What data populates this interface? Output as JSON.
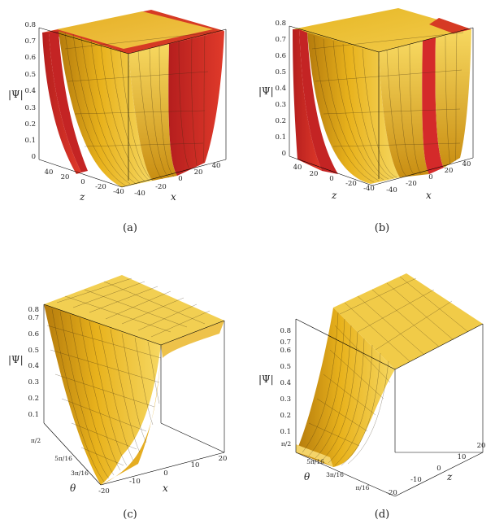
{
  "figure": {
    "panels": [
      {
        "id": "a",
        "caption": "(a)",
        "z_label": "|Ψ|",
        "z_ticks": [
          "0",
          "0.1",
          "0.2",
          "0.3",
          "0.4",
          "0.5",
          "0.6",
          "0.7",
          "0.8"
        ],
        "depth_label": "z",
        "depth_ticks": [
          "40",
          "20",
          "0",
          "-20",
          "-40"
        ],
        "right_label": "x",
        "right_ticks": [
          "-40",
          "-20",
          "0",
          "20",
          "40"
        ]
      },
      {
        "id": "b",
        "caption": "(b)",
        "z_label": "|Ψ|",
        "z_ticks": [
          "0",
          "0.1",
          "0.2",
          "0.3",
          "0.4",
          "0.5",
          "0.6",
          "0.7",
          "0.8"
        ],
        "depth_label": "z",
        "depth_ticks": [
          "40",
          "20",
          "0",
          "-20",
          "-40"
        ],
        "right_label": "x",
        "right_ticks": [
          "-40",
          "-20",
          "0",
          "20",
          "40"
        ]
      },
      {
        "id": "c",
        "caption": "(c)",
        "z_label": "|Ψ|",
        "z_ticks": [
          "0.1",
          "0.2",
          "0.3",
          "0.4",
          "0.5",
          "0.6",
          "0.7",
          "0.8"
        ],
        "depth_label": "θ",
        "depth_ticks": [
          "π/2",
          "5π/16",
          "3π/16"
        ],
        "right_label": "x",
        "right_ticks": [
          "-20",
          "-10",
          "0",
          "10",
          "20"
        ]
      },
      {
        "id": "d",
        "caption": "(d)",
        "z_label": "|Ψ|",
        "z_ticks": [
          "0.1",
          "0.2",
          "0.3",
          "0.4",
          "0.5",
          "0.6",
          "0.7",
          "0.8"
        ],
        "depth_label": "θ",
        "depth_ticks": [
          "π/2",
          "5π/16",
          "3π/16",
          "π/16"
        ],
        "right_label": "z",
        "right_ticks": [
          "-20",
          "-10",
          "0",
          "10",
          "20"
        ]
      }
    ],
    "colors": {
      "red_surface": "#d42a2a",
      "gold_surface": "#e8b21c",
      "gold_light": "#f5d25a",
      "gold_dark": "#b07810",
      "mesh": "#3a2a10",
      "box": "#000000"
    }
  }
}
